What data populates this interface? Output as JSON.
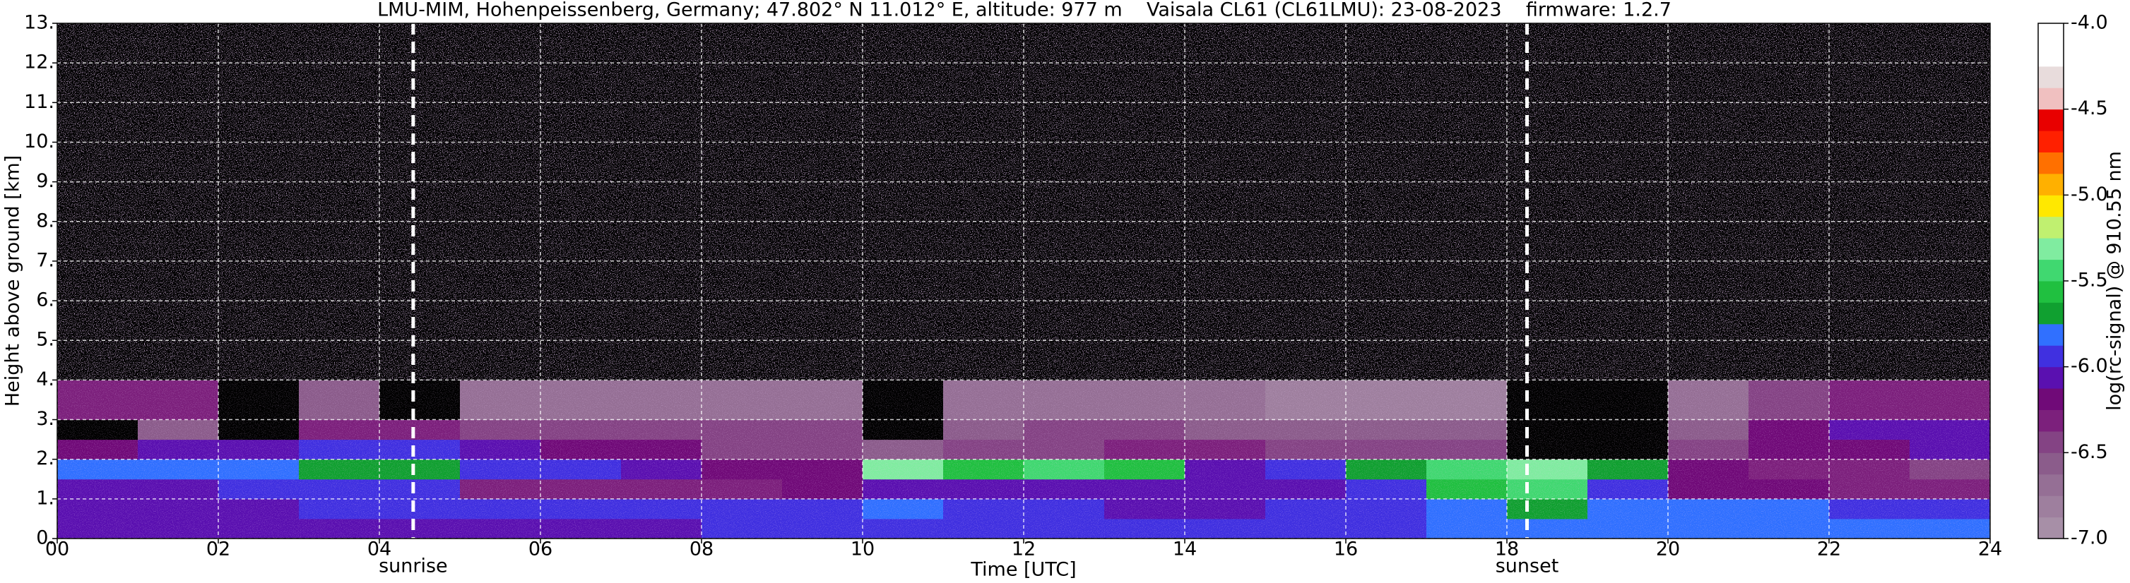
{
  "chart_data": {
    "type": "heatmap",
    "title": "LMU-MIM, Hohenpeissenberg, Germany; 47.802° N 11.012° E, altitude: 977 m    Vaisala CL61 (CL61LMU): 23-08-2023    firmware: 1.2.7",
    "x_label": "Time [UTC]",
    "y_label": "Height above ground [km]",
    "colorbar_label": "log(rc-signal) @ 910.55 nm",
    "xlim": [
      0,
      24
    ],
    "ylim": [
      0,
      13
    ],
    "clim": [
      -7,
      -4
    ],
    "xticks": [
      {
        "value": 0,
        "label": "00"
      },
      {
        "value": 2,
        "label": "02"
      },
      {
        "value": 4,
        "label": "04"
      },
      {
        "value": 6,
        "label": "06"
      },
      {
        "value": 8,
        "label": "08"
      },
      10,
      12,
      14,
      16,
      18,
      20,
      22,
      24
    ],
    "yticks": [
      {
        "value": 0,
        "label": "0."
      },
      {
        "value": 1,
        "label": "1."
      },
      {
        "value": 2,
        "label": "2."
      },
      {
        "value": 3,
        "label": "3."
      },
      {
        "value": 4,
        "label": "4."
      },
      {
        "value": 5,
        "label": "5."
      },
      {
        "value": 6,
        "label": "6."
      },
      {
        "value": 7,
        "label": "7."
      },
      {
        "value": 8,
        "label": "8."
      },
      {
        "value": 9,
        "label": "9."
      },
      {
        "value": 10,
        "label": "10."
      },
      {
        "value": 11,
        "label": "11."
      },
      {
        "value": 12,
        "label": "12."
      },
      {
        "value": 13,
        "label": "13."
      }
    ],
    "cticks": [
      {
        "value": -4,
        "label": "-4.0"
      },
      {
        "value": -4.5,
        "label": "-4.5"
      },
      {
        "value": -5,
        "label": "-5.0"
      },
      {
        "value": -5.5,
        "label": "-5.5"
      },
      {
        "value": -6,
        "label": "-6.0"
      },
      {
        "value": -6.5,
        "label": "-6.5"
      },
      {
        "value": -7,
        "label": "-7.0"
      }
    ],
    "grid": true,
    "under_color": "#000000",
    "colorscale": [
      "#a78fa7",
      "#9e7f9e",
      "#956f95",
      "#8b5c8b",
      "#844384",
      "#7c207c",
      "#700a78",
      "#5a10b0",
      "#4030e0",
      "#3070ff",
      "#10a030",
      "#20c040",
      "#40d870",
      "#80eca0",
      "#c0f070",
      "#ffe800",
      "#ffb000",
      "#ff7000",
      "#ff2000",
      "#e80000",
      "#f0c0c0",
      "#e8dcdc",
      "#ffffff",
      "#ffffff"
    ],
    "annotations": [
      {
        "label": "sunrise",
        "x": 4.42
      },
      {
        "label": "sunset",
        "x": 18.25
      }
    ],
    "x_edges": [
      0,
      1,
      2,
      3,
      4,
      5,
      6,
      7,
      8,
      9,
      10,
      11,
      12,
      13,
      14,
      15,
      16,
      17,
      18,
      19,
      20,
      21,
      22,
      23,
      24
    ],
    "y_edges": [
      0,
      0.5,
      1,
      1.5,
      2,
      2.5,
      3,
      4,
      13
    ],
    "z": [
      [
        -6.1,
        -6.1,
        -6.1,
        -6.1,
        -6.1,
        -6.05,
        -6.05,
        -6.05,
        -5.9,
        -5.9,
        -6.0,
        -6.0,
        -6.0,
        -6.0,
        -6.0,
        -6.0,
        -5.9,
        -5.8,
        -5.8,
        -5.8,
        -5.8,
        -5.8,
        -5.85,
        -5.85
      ],
      [
        -6.05,
        -6.05,
        -6.05,
        -6.0,
        -6.0,
        -6.0,
        -5.95,
        -5.95,
        -6.0,
        -6.0,
        -5.85,
        -6.0,
        -6.0,
        -6.05,
        -6.05,
        -6.0,
        -5.9,
        -5.8,
        -5.75,
        -5.85,
        -5.85,
        -5.85,
        -5.9,
        -5.9
      ],
      [
        -6.1,
        -6.1,
        -6.0,
        -6.0,
        -6.0,
        -6.3,
        -6.3,
        -6.3,
        -6.3,
        -6.2,
        -6.1,
        -6.1,
        -6.1,
        -6.1,
        -6.1,
        -6.05,
        -5.9,
        -5.6,
        -5.5,
        -6.0,
        -6.15,
        -6.2,
        -6.3,
        -6.3
      ],
      [
        -5.85,
        -5.85,
        -5.8,
        -5.75,
        -5.7,
        -6.0,
        -5.95,
        -6.1,
        -6.2,
        -6.2,
        -5.3,
        -5.6,
        -5.5,
        -5.6,
        -6.1,
        -6.0,
        -5.7,
        -5.4,
        -5.3,
        -5.7,
        -6.2,
        -6.3,
        -6.35,
        -6.4
      ],
      [
        -6.2,
        -6.1,
        -6.05,
        -6.0,
        -6.0,
        -6.1,
        -6.2,
        -6.25,
        -6.4,
        -6.4,
        -6.6,
        -6.45,
        -6.4,
        -6.3,
        -6.35,
        -6.4,
        -6.4,
        -6.45,
        -7.2,
        -7.2,
        -6.4,
        -6.2,
        -6.15,
        -6.1
      ],
      [
        -7.2,
        -6.6,
        -7.2,
        -6.3,
        -6.3,
        -6.5,
        -6.5,
        -6.4,
        -6.4,
        -6.5,
        -7.2,
        -6.6,
        -6.5,
        -6.5,
        -6.55,
        -6.6,
        -6.6,
        -6.6,
        -7.2,
        -7.2,
        -6.6,
        -6.2,
        -6.1,
        -6.1
      ],
      [
        -6.3,
        -6.35,
        -7.2,
        -6.6,
        -7.2,
        -6.7,
        -6.7,
        -6.7,
        -6.75,
        -6.75,
        -7.2,
        -6.75,
        -6.7,
        -6.75,
        -6.75,
        -6.8,
        -6.8,
        -6.8,
        -7.2,
        -7.2,
        -6.7,
        -6.4,
        -6.3,
        -6.3
      ],
      [
        -7.1,
        -7.1,
        -7.1,
        -7.1,
        -7.1,
        -7.1,
        -7.1,
        -7.1,
        -7.1,
        -7.1,
        -7.1,
        -7.1,
        -7.1,
        -7.1,
        -7.1,
        -7.1,
        -7.1,
        -7.1,
        -7.1,
        -7.1,
        -7.1,
        -7.1,
        -7.1,
        -7.1
      ]
    ]
  }
}
